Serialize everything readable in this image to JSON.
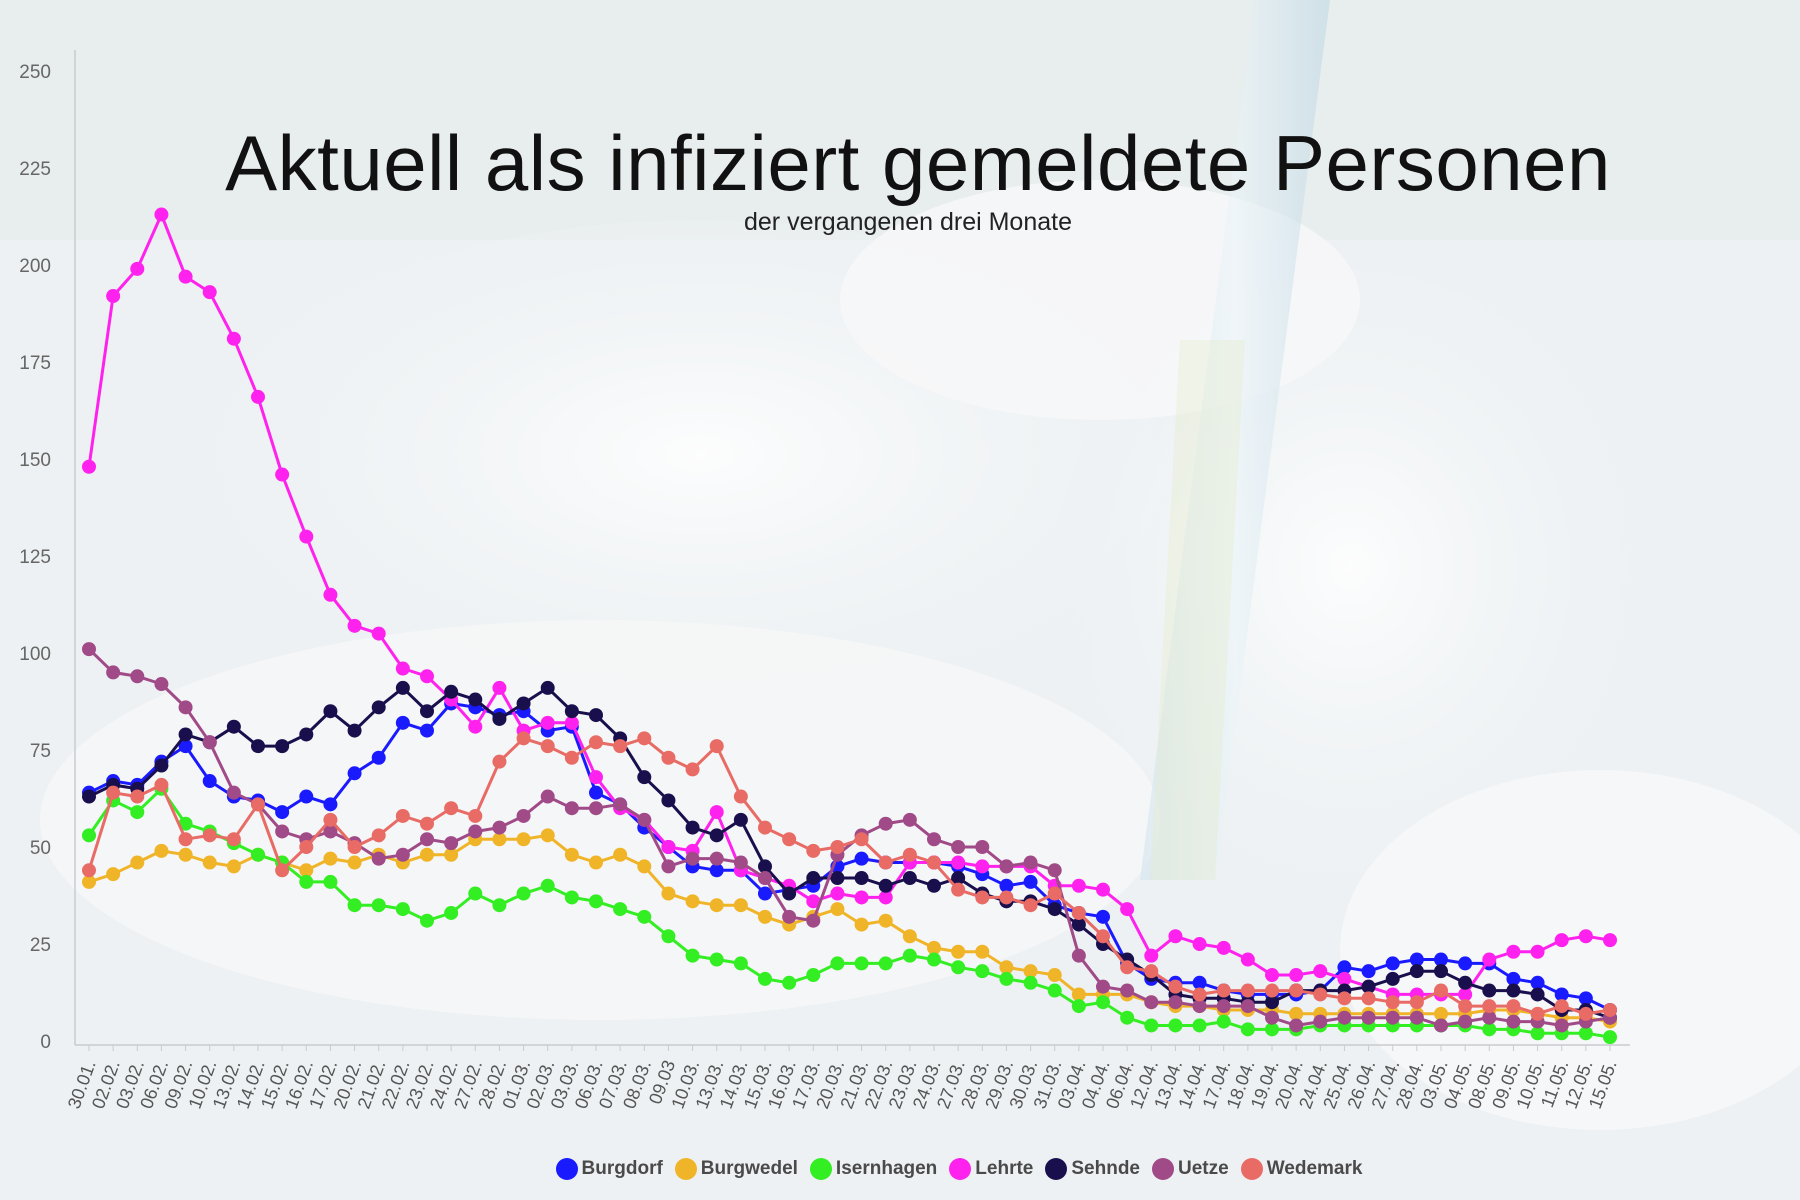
{
  "chart_data": {
    "type": "line",
    "title": "Aktuell als infiziert gemeldete Personen",
    "subtitle": "der vergangenen drei Monate",
    "xlabel": "",
    "ylabel": "",
    "ylim": [
      0,
      250
    ],
    "yticks": [
      "0",
      "25",
      "50",
      "75",
      "100",
      "125",
      "150",
      "175",
      "200",
      "225",
      "250"
    ],
    "grid": false,
    "legend": "bottom",
    "categories": [
      "30.01.",
      "02.02.",
      "03.02.",
      "06.02.",
      "09.02.",
      "10.02.",
      "13.02.",
      "14.02.",
      "15.02.",
      "16.02.",
      "17.02.",
      "20.02.",
      "21.02.",
      "22.02.",
      "23.02.",
      "24.02.",
      "27.02.",
      "28.02.",
      "01.03.",
      "02.03.",
      "03.03.",
      "06.03.",
      "07.03.",
      "08.03.",
      "09.03",
      "10.03.",
      "13.03.",
      "14.03.",
      "15.03.",
      "16.03.",
      "17.03.",
      "20.03.",
      "21.03.",
      "22.03.",
      "23.03.",
      "24.03.",
      "27.03.",
      "28.03.",
      "29.03.",
      "30.03.",
      "31.03.",
      "03.04.",
      "04.04.",
      "06.04.",
      "12.04.",
      "13.04.",
      "14.04.",
      "17.04.",
      "18.04.",
      "19.04.",
      "20.04.",
      "24.04.",
      "25.04.",
      "26.04.",
      "27.04.",
      "28.04.",
      "03.05.",
      "04.05.",
      "08.05.",
      "09.05.",
      "10.05.",
      "11.05.",
      "12.05.",
      "15.05."
    ],
    "series": [
      {
        "name": "Burgdorf",
        "color": "#1a1aff",
        "values": [
          64,
          67,
          66,
          72,
          76,
          67,
          63,
          62,
          59,
          63,
          61,
          69,
          73,
          82,
          80,
          87,
          86,
          84,
          85,
          80,
          81,
          64,
          61,
          55,
          50,
          45,
          44,
          44,
          38,
          39,
          40,
          45,
          47,
          46,
          46,
          46,
          45,
          43,
          40,
          41,
          35,
          33,
          32,
          20,
          16,
          15,
          15,
          13,
          12,
          12,
          12,
          13,
          19,
          18,
          20,
          21,
          21,
          20,
          20,
          16,
          15,
          12,
          11,
          8
        ]
      },
      {
        "name": "Burgwedel",
        "color": "#f0b429",
        "values": [
          41,
          43,
          46,
          49,
          48,
          46,
          45,
          48,
          46,
          44,
          47,
          46,
          48,
          46,
          48,
          48,
          52,
          52,
          52,
          53,
          48,
          46,
          48,
          45,
          38,
          36,
          35,
          35,
          32,
          30,
          32,
          34,
          30,
          31,
          27,
          24,
          23,
          23,
          19,
          18,
          17,
          12,
          12,
          12,
          10,
          9,
          9,
          8,
          8,
          8,
          7,
          7,
          7,
          7,
          7,
          7,
          7,
          7,
          8,
          8,
          7,
          6,
          6,
          5
        ]
      },
      {
        "name": "Isernhagen",
        "color": "#33ee22",
        "values": [
          53,
          62,
          59,
          65,
          56,
          54,
          51,
          48,
          46,
          41,
          41,
          35,
          35,
          34,
          31,
          33,
          38,
          35,
          38,
          40,
          37,
          36,
          34,
          32,
          27,
          22,
          21,
          20,
          16,
          15,
          17,
          20,
          20,
          20,
          22,
          21,
          19,
          18,
          16,
          15,
          13,
          9,
          10,
          6,
          4,
          4,
          4,
          5,
          3,
          3,
          3,
          4,
          4,
          4,
          4,
          4,
          4,
          4,
          3,
          3,
          2,
          2,
          2,
          1
        ]
      },
      {
        "name": "Lehrte",
        "color": "#ff22ee",
        "values": [
          148,
          192,
          199,
          213,
          197,
          193,
          181,
          166,
          146,
          130,
          115,
          107,
          105,
          96,
          94,
          88,
          81,
          91,
          80,
          82,
          82,
          68,
          60,
          57,
          50,
          49,
          59,
          44,
          42,
          40,
          36,
          38,
          37,
          37,
          46,
          46,
          46,
          45,
          45,
          45,
          40,
          40,
          39,
          34,
          22,
          27,
          25,
          24,
          21,
          17,
          17,
          18,
          16,
          14,
          12,
          12,
          12,
          12,
          21,
          23,
          23,
          26,
          27,
          26
        ]
      },
      {
        "name": "Sehnde",
        "color": "#1a0f4d",
        "values": [
          63,
          66,
          65,
          71,
          79,
          77,
          81,
          76,
          76,
          79,
          85,
          80,
          86,
          91,
          85,
          90,
          88,
          83,
          87,
          91,
          85,
          84,
          78,
          68,
          62,
          55,
          53,
          57,
          45,
          38,
          42,
          42,
          42,
          40,
          42,
          40,
          42,
          38,
          36,
          36,
          34,
          30,
          25,
          21,
          17,
          12,
          11,
          11,
          10,
          10,
          13,
          13,
          13,
          14,
          16,
          18,
          18,
          15,
          13,
          13,
          12,
          8,
          8,
          6
        ]
      },
      {
        "name": "Uetze",
        "color": "#a04a88",
        "values": [
          101,
          95,
          94,
          92,
          86,
          77,
          64,
          61,
          54,
          52,
          54,
          51,
          47,
          48,
          52,
          51,
          54,
          55,
          58,
          63,
          60,
          60,
          61,
          57,
          45,
          47,
          47,
          46,
          42,
          32,
          31,
          48,
          53,
          56,
          57,
          52,
          50,
          50,
          45,
          46,
          44,
          22,
          14,
          13,
          10,
          10,
          9,
          9,
          9,
          6,
          4,
          5,
          6,
          6,
          6,
          6,
          4,
          5,
          6,
          5,
          5,
          4,
          5,
          6
        ]
      },
      {
        "name": "Wedemark",
        "color": "#e86b65",
        "values": [
          44,
          64,
          63,
          66,
          52,
          53,
          52,
          61,
          44,
          50,
          57,
          50,
          53,
          58,
          56,
          60,
          58,
          72,
          78,
          76,
          73,
          77,
          76,
          78,
          73,
          70,
          76,
          63,
          55,
          52,
          49,
          50,
          52,
          46,
          48,
          46,
          39,
          37,
          37,
          35,
          38,
          33,
          27,
          19,
          18,
          14,
          12,
          13,
          13,
          13,
          13,
          12,
          11,
          11,
          10,
          10,
          13,
          9,
          9,
          9,
          7,
          9,
          7,
          8
        ]
      }
    ]
  }
}
